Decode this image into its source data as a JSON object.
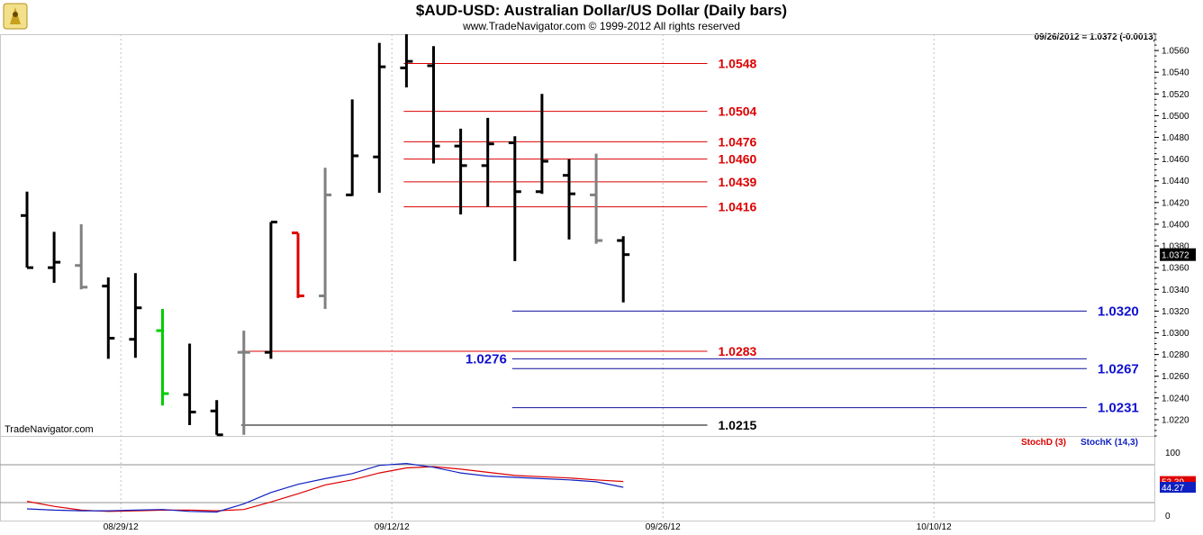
{
  "header": {
    "title": "$AUD-USD:  Australian Dollar/US Dollar  (Daily bars)",
    "subtitle": "www.TradeNavigator.com © 1999-2012 All rights reserved",
    "readout": "09/26/2012 = 1.0372 (-0.0013)",
    "watermark": "TradeNavigator.com",
    "logo_icon": "trade-navigator-logo-icon"
  },
  "chart_data": [
    {
      "type": "ohlc",
      "title": "$AUD-USD:  Australian Dollar/US Dollar  (Daily bars)",
      "ylim": [
        1.0205,
        1.0575
      ],
      "y_ticks": [
        1.022,
        1.024,
        1.026,
        1.028,
        1.03,
        1.032,
        1.034,
        1.036,
        1.038,
        1.04,
        1.042,
        1.044,
        1.046,
        1.048,
        1.05,
        1.052,
        1.054,
        1.056
      ],
      "x_labels": [
        "08/29/12",
        "09/12/12",
        "09/26/12",
        "10/10/12"
      ],
      "grid": "vertical dotted at week markers",
      "last_price_label": "1.0372",
      "bars": [
        {
          "date": "08/27/12",
          "open": 1.0408,
          "high": 1.043,
          "low": 1.036,
          "close": 1.036,
          "color": "#000000"
        },
        {
          "date": "08/28/12",
          "open": 1.036,
          "high": 1.0393,
          "low": 1.0346,
          "close": 1.0365,
          "color": "#000000"
        },
        {
          "date": "08/29/12",
          "open": 1.0362,
          "high": 1.04,
          "low": 1.034,
          "close": 1.0342,
          "color": "#808080"
        },
        {
          "date": "08/30/12",
          "open": 1.0343,
          "high": 1.0351,
          "low": 1.0276,
          "close": 1.0295,
          "color": "#000000"
        },
        {
          "date": "08/31/12",
          "open": 1.0294,
          "high": 1.0355,
          "low": 1.0277,
          "close": 1.0323,
          "color": "#000000"
        },
        {
          "date": "09/03/12",
          "open": 1.0302,
          "high": 1.0322,
          "low": 1.0233,
          "close": 1.0244,
          "color": "#00cc00"
        },
        {
          "date": "09/04/12",
          "open": 1.0243,
          "high": 1.029,
          "low": 1.0215,
          "close": 1.0227,
          "color": "#000000"
        },
        {
          "date": "09/05/12",
          "open": 1.0228,
          "high": 1.0238,
          "low": 1.0206,
          "close": 1.0206,
          "color": "#000000"
        },
        {
          "date": "09/06/12",
          "open": 1.0282,
          "high": 1.0302,
          "low": 1.0206,
          "close": 1.0282,
          "color": "#808080"
        },
        {
          "date": "09/07/12",
          "open": 1.0282,
          "high": 1.0402,
          "low": 1.0276,
          "close": 1.0402,
          "color": "#000000"
        },
        {
          "date": "09/10/12",
          "open": 1.0392,
          "high": 1.0392,
          "low": 1.0332,
          "close": 1.0334,
          "color": "#dd0000"
        },
        {
          "date": "09/11/12",
          "open": 1.0334,
          "high": 1.0452,
          "low": 1.0322,
          "close": 1.0427,
          "color": "#808080"
        },
        {
          "date": "09/12/12",
          "open": 1.0427,
          "high": 1.0515,
          "low": 1.0426,
          "close": 1.0463,
          "color": "#000000"
        },
        {
          "date": "09/13/12",
          "open": 1.0462,
          "high": 1.0567,
          "low": 1.0429,
          "close": 1.0545,
          "color": "#000000"
        },
        {
          "date": "09/14/12",
          "open": 1.0544,
          "high": 1.0575,
          "low": 1.0526,
          "close": 1.055,
          "color": "#000000"
        },
        {
          "date": "09/17/12",
          "open": 1.0546,
          "high": 1.0564,
          "low": 1.0456,
          "close": 1.0472,
          "color": "#000000"
        },
        {
          "date": "09/18/12",
          "open": 1.0472,
          "high": 1.0488,
          "low": 1.0409,
          "close": 1.0454,
          "color": "#000000"
        },
        {
          "date": "09/19/12",
          "open": 1.0454,
          "high": 1.0498,
          "low": 1.0416,
          "close": 1.0474,
          "color": "#000000"
        },
        {
          "date": "09/20/12",
          "open": 1.0475,
          "high": 1.0481,
          "low": 1.0366,
          "close": 1.043,
          "color": "#000000"
        },
        {
          "date": "09/21/12",
          "open": 1.043,
          "high": 1.052,
          "low": 1.0428,
          "close": 1.0458,
          "color": "#000000"
        },
        {
          "date": "09/24/12",
          "open": 1.0445,
          "high": 1.046,
          "low": 1.0386,
          "close": 1.0428,
          "color": "#000000"
        },
        {
          "date": "09/25/12",
          "open": 1.0427,
          "high": 1.0465,
          "low": 1.0382,
          "close": 1.0385,
          "color": "#808080"
        },
        {
          "date": "09/26/12",
          "open": 1.0385,
          "high": 1.0389,
          "low": 1.0328,
          "close": 1.0372,
          "color": "#000000"
        }
      ],
      "levels": [
        {
          "label": "1.0548",
          "value": 1.0548,
          "color": "#dd0000",
          "from_bar": 14,
          "to_bar": 25,
          "label_side": "right"
        },
        {
          "label": "1.0504",
          "value": 1.0504,
          "color": "#dd0000",
          "from_bar": 14,
          "to_bar": 25,
          "label_side": "right"
        },
        {
          "label": "1.0476",
          "value": 1.0476,
          "color": "#dd0000",
          "from_bar": 14,
          "to_bar": 25,
          "label_side": "right"
        },
        {
          "label": "1.0460",
          "value": 1.046,
          "color": "#dd0000",
          "from_bar": 14,
          "to_bar": 25,
          "label_side": "right"
        },
        {
          "label": "1.0439",
          "value": 1.0439,
          "color": "#dd0000",
          "from_bar": 14,
          "to_bar": 25,
          "label_side": "right"
        },
        {
          "label": "1.0416",
          "value": 1.0416,
          "color": "#dd0000",
          "from_bar": 14,
          "to_bar": 25,
          "label_side": "right"
        },
        {
          "label": "1.0320",
          "value": 1.032,
          "color": "#1010a0",
          "from_bar": 18,
          "to_bar": 39,
          "label_side": "right"
        },
        {
          "label": "1.0283",
          "value": 1.0283,
          "color": "#dd0000",
          "from_bar": 8,
          "to_bar": 25,
          "label_side": "right"
        },
        {
          "label": "1.0276",
          "value": 1.0276,
          "color": "#1010a0",
          "from_bar": 18,
          "to_bar": 39,
          "label_side": "left"
        },
        {
          "label": "1.0267",
          "value": 1.0267,
          "color": "#1010a0",
          "from_bar": 18,
          "to_bar": 39,
          "label_side": "right"
        },
        {
          "label": "1.0231",
          "value": 1.0231,
          "color": "#1010a0",
          "from_bar": 18,
          "to_bar": 39,
          "label_side": "right"
        },
        {
          "label": "1.0215",
          "value": 1.0215,
          "color": "#000000",
          "from_bar": 8,
          "to_bar": 25,
          "label_side": "right"
        }
      ]
    },
    {
      "type": "line",
      "ylim": [
        0,
        100
      ],
      "y_ticks": [
        0,
        100
      ],
      "reference_lines": [
        80,
        20
      ],
      "series": [
        {
          "name": "StochD (3)",
          "color": "#dd0000",
          "last_label": "53.39",
          "values": [
            22,
            14,
            8,
            6,
            7,
            8,
            8,
            7,
            9,
            21,
            34,
            48,
            56,
            67,
            75,
            77,
            73,
            68,
            63,
            61,
            59,
            56,
            53.39
          ]
        },
        {
          "name": "StochK (14,3)",
          "color": "#1020c0",
          "last_label": "44.27",
          "values": [
            10,
            8,
            7,
            7,
            8,
            9,
            6,
            5,
            18,
            36,
            49,
            58,
            66,
            79,
            82,
            76,
            67,
            62,
            60,
            58,
            56,
            53,
            44.27
          ]
        }
      ]
    }
  ]
}
